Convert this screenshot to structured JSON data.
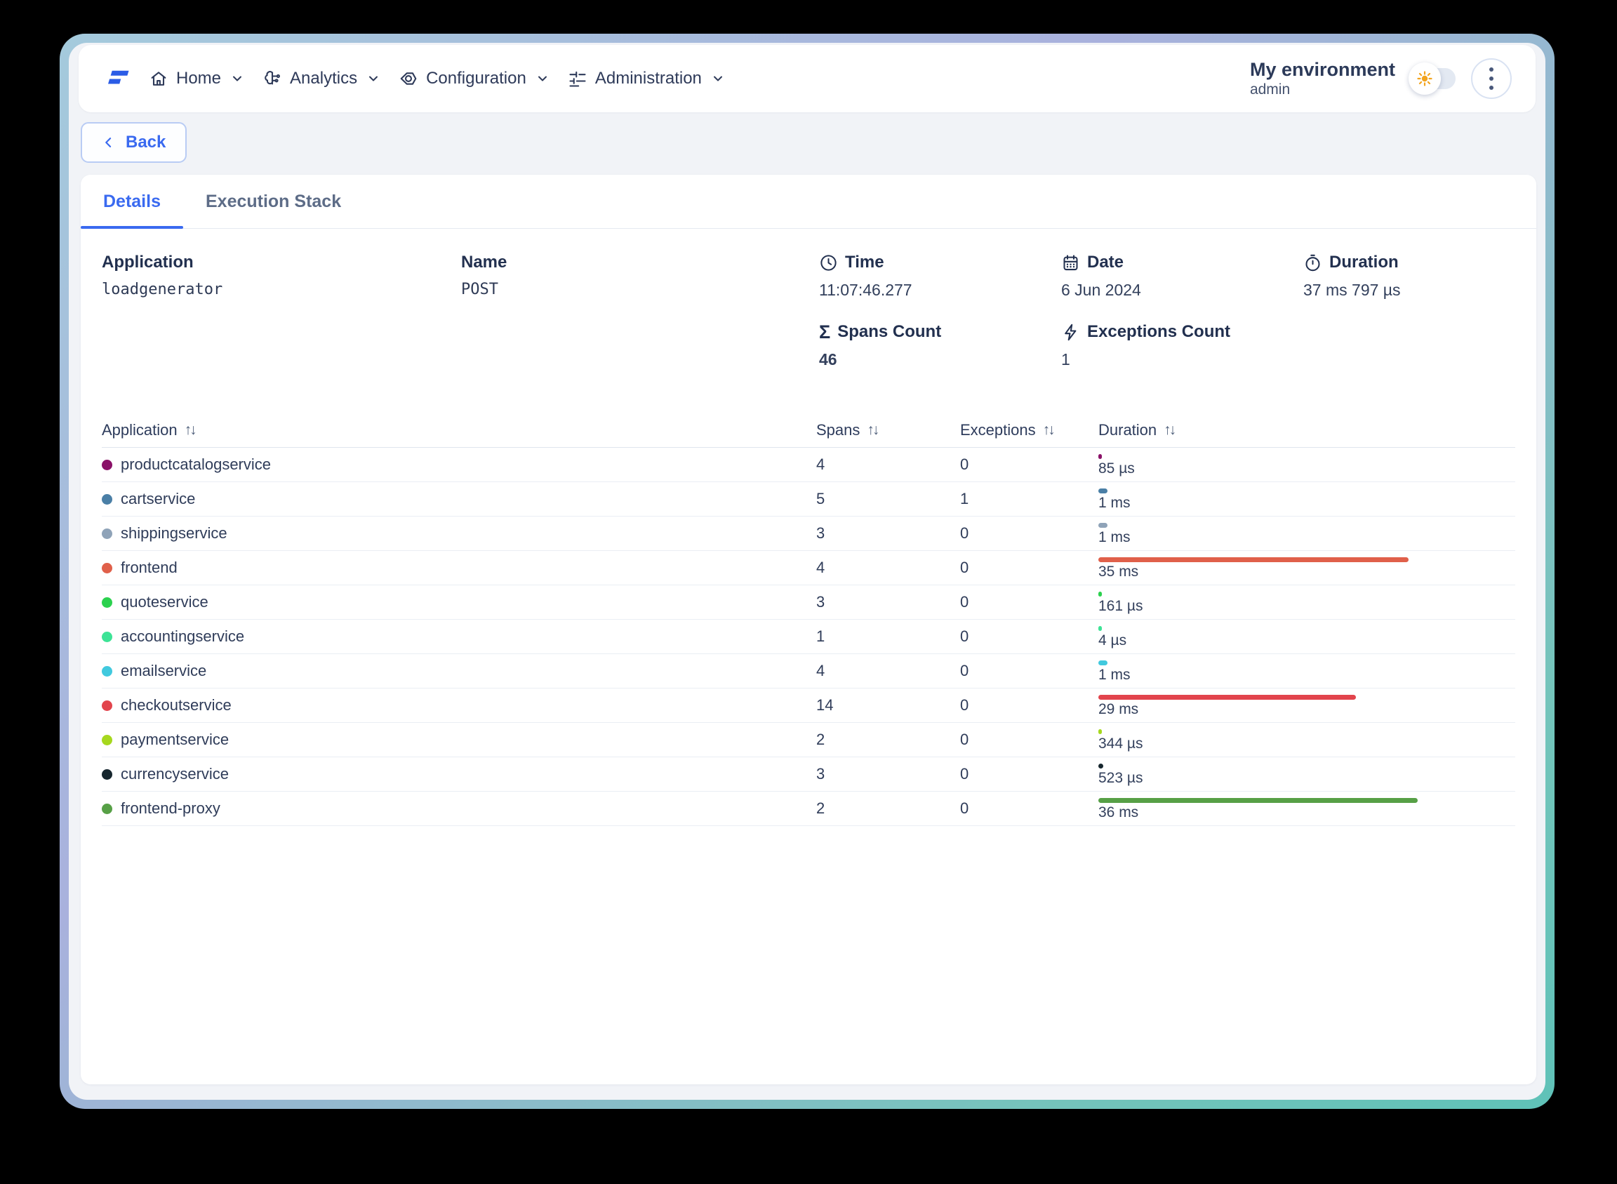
{
  "nav": {
    "items": [
      {
        "label": "Home"
      },
      {
        "label": "Analytics"
      },
      {
        "label": "Configuration"
      },
      {
        "label": "Administration"
      }
    ],
    "environment": {
      "name": "My environment",
      "user": "admin"
    }
  },
  "back_label": "Back",
  "tabs": [
    {
      "label": "Details",
      "active": true
    },
    {
      "label": "Execution Stack",
      "active": false
    }
  ],
  "summary": {
    "application": {
      "label": "Application",
      "value": "loadgenerator"
    },
    "name": {
      "label": "Name",
      "value": "POST"
    },
    "time": {
      "label": "Time",
      "value": "11:07:46.277"
    },
    "date": {
      "label": "Date",
      "value": "6 Jun 2024"
    },
    "duration": {
      "label": "Duration",
      "value": "37 ms 797 µs"
    },
    "spans_count": {
      "label": "Spans Count",
      "value": "46"
    },
    "exceptions_count": {
      "label": "Exceptions Count",
      "value": "1"
    }
  },
  "table": {
    "columns": [
      "Application",
      "Spans",
      "Exceptions",
      "Duration"
    ],
    "rows": [
      {
        "application": "productcatalogservice",
        "color": "#8a1168",
        "spans": "4",
        "exceptions": "0",
        "duration_label": "85 µs",
        "bar_pct": 0.3
      },
      {
        "application": "cartservice",
        "color": "#4a7fa6",
        "spans": "5",
        "exceptions": "1",
        "duration_label": "1 ms",
        "bar_pct": 2.8
      },
      {
        "application": "shippingservice",
        "color": "#8fa3b8",
        "spans": "3",
        "exceptions": "0",
        "duration_label": "1 ms",
        "bar_pct": 2.8
      },
      {
        "application": "frontend",
        "color": "#e0604a",
        "spans": "4",
        "exceptions": "0",
        "duration_label": "35 ms",
        "bar_pct": 97.2
      },
      {
        "application": "quoteservice",
        "color": "#2bd14e",
        "spans": "3",
        "exceptions": "0",
        "duration_label": "161 µs",
        "bar_pct": 0.5
      },
      {
        "application": "accountingservice",
        "color": "#3de396",
        "spans": "1",
        "exceptions": "0",
        "duration_label": "4 µs",
        "bar_pct": 0.1
      },
      {
        "application": "emailservice",
        "color": "#41c9de",
        "spans": "4",
        "exceptions": "0",
        "duration_label": "1 ms",
        "bar_pct": 2.8
      },
      {
        "application": "checkoutservice",
        "color": "#e2444c",
        "spans": "14",
        "exceptions": "0",
        "duration_label": "29 ms",
        "bar_pct": 80.6
      },
      {
        "application": "paymentservice",
        "color": "#a6d81e",
        "spans": "2",
        "exceptions": "0",
        "duration_label": "344 µs",
        "bar_pct": 1.0
      },
      {
        "application": "currencyservice",
        "color": "#16262e",
        "spans": "3",
        "exceptions": "0",
        "duration_label": "523 µs",
        "bar_pct": 1.5
      },
      {
        "application": "frontend-proxy",
        "color": "#57a046",
        "spans": "2",
        "exceptions": "0",
        "duration_label": "36 ms",
        "bar_pct": 100
      }
    ]
  }
}
